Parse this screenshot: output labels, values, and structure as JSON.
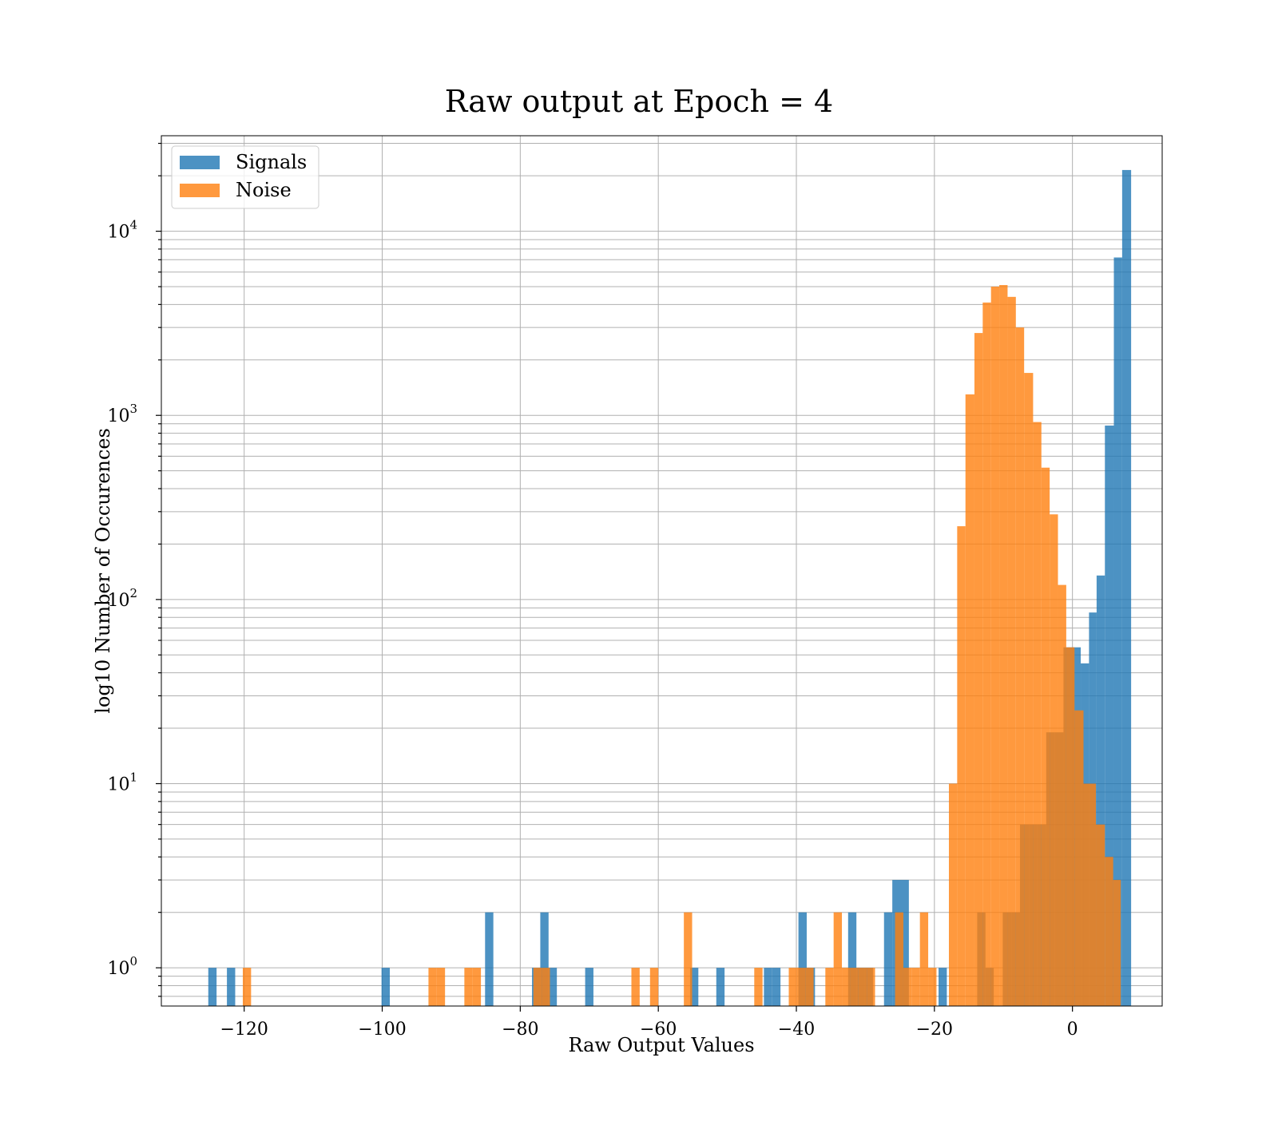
{
  "chart_data": {
    "type": "histogram",
    "title": "Raw output at Epoch = 4",
    "xlabel": "Raw Output Values",
    "ylabel": "log10 Number of Occurences",
    "xlim": [
      -132,
      13
    ],
    "ylim": [
      0.62,
      33000
    ],
    "yscale": "log",
    "grid": true,
    "grid_y_minor": true,
    "legend_position": "top-left",
    "x_ticks": [
      {
        "value": -120,
        "label": "−120"
      },
      {
        "value": -100,
        "label": "−100"
      },
      {
        "value": -80,
        "label": "−80"
      },
      {
        "value": -60,
        "label": "−60"
      },
      {
        "value": -40,
        "label": "−40"
      },
      {
        "value": -20,
        "label": "−20"
      },
      {
        "value": 0,
        "label": "0"
      }
    ],
    "y_ticks": [
      {
        "value": 1,
        "base": "10",
        "exp": "0"
      },
      {
        "value": 10,
        "base": "10",
        "exp": "1"
      },
      {
        "value": 100,
        "base": "10",
        "exp": "2"
      },
      {
        "value": 1000,
        "base": "10",
        "exp": "3"
      },
      {
        "value": 10000,
        "base": "10",
        "exp": "4"
      }
    ],
    "series": [
      {
        "name": "Signals",
        "color": "#1f77b4",
        "opacity": 0.8,
        "bins": [
          {
            "x0": -125.2,
            "x1": -124.0,
            "count": 1
          },
          {
            "x0": -122.5,
            "x1": -121.3,
            "count": 1
          },
          {
            "x0": -100.1,
            "x1": -98.9,
            "count": 1
          },
          {
            "x0": -85.1,
            "x1": -83.9,
            "count": 2
          },
          {
            "x0": -78.3,
            "x1": -77.1,
            "count": 1
          },
          {
            "x0": -77.1,
            "x1": -75.9,
            "count": 2
          },
          {
            "x0": -75.9,
            "x1": -74.7,
            "count": 1
          },
          {
            "x0": -70.6,
            "x1": -69.4,
            "count": 1
          },
          {
            "x0": -55.4,
            "x1": -54.2,
            "count": 1
          },
          {
            "x0": -51.6,
            "x1": -50.4,
            "count": 1
          },
          {
            "x0": -44.7,
            "x1": -43.5,
            "count": 1
          },
          {
            "x0": -43.5,
            "x1": -42.3,
            "count": 1
          },
          {
            "x0": -39.7,
            "x1": -38.5,
            "count": 2
          },
          {
            "x0": -38.5,
            "x1": -37.3,
            "count": 1
          },
          {
            "x0": -32.5,
            "x1": -31.3,
            "count": 2
          },
          {
            "x0": -31.3,
            "x1": -30.1,
            "count": 1
          },
          {
            "x0": -30.1,
            "x1": -28.9,
            "count": 1
          },
          {
            "x0": -27.3,
            "x1": -26.1,
            "count": 2
          },
          {
            "x0": -26.1,
            "x1": -24.9,
            "count": 3
          },
          {
            "x0": -24.9,
            "x1": -23.7,
            "count": 3
          },
          {
            "x0": -19.4,
            "x1": -18.2,
            "count": 1
          },
          {
            "x0": -13.8,
            "x1": -12.6,
            "count": 2
          },
          {
            "x0": -12.6,
            "x1": -11.4,
            "count": 1
          },
          {
            "x0": -10.1,
            "x1": -8.8,
            "count": 2
          },
          {
            "x0": -8.8,
            "x1": -7.6,
            "count": 2
          },
          {
            "x0": -7.6,
            "x1": -6.3,
            "count": 6
          },
          {
            "x0": -6.3,
            "x1": -5.1,
            "count": 6
          },
          {
            "x0": -5.1,
            "x1": -3.8,
            "count": 6
          },
          {
            "x0": -3.8,
            "x1": -2.6,
            "count": 19
          },
          {
            "x0": -2.6,
            "x1": -1.3,
            "count": 19
          },
          {
            "x0": -1.3,
            "x1": 0.0,
            "count": 55
          },
          {
            "x0": 0.0,
            "x1": 1.2,
            "count": 55
          },
          {
            "x0": 1.2,
            "x1": 2.4,
            "count": 45
          },
          {
            "x0": 2.4,
            "x1": 3.5,
            "count": 85
          },
          {
            "x0": 3.5,
            "x1": 4.7,
            "count": 135
          },
          {
            "x0": 4.7,
            "x1": 6.0,
            "count": 880
          },
          {
            "x0": 6.0,
            "x1": 7.2,
            "count": 7200
          },
          {
            "x0": 7.2,
            "x1": 8.5,
            "count": 21500
          }
        ]
      },
      {
        "name": "Noise",
        "color": "#ff7f0e",
        "opacity": 0.8,
        "bins": [
          {
            "x0": -120.2,
            "x1": -119.0,
            "count": 1
          },
          {
            "x0": -93.3,
            "x1": -92.1,
            "count": 1
          },
          {
            "x0": -92.1,
            "x1": -90.9,
            "count": 1
          },
          {
            "x0": -88.1,
            "x1": -86.9,
            "count": 1
          },
          {
            "x0": -86.9,
            "x1": -85.7,
            "count": 1
          },
          {
            "x0": -78.1,
            "x1": -76.9,
            "count": 1
          },
          {
            "x0": -76.9,
            "x1": -75.7,
            "count": 1
          },
          {
            "x0": -63.9,
            "x1": -62.7,
            "count": 1
          },
          {
            "x0": -61.2,
            "x1": -60.0,
            "count": 1
          },
          {
            "x0": -56.3,
            "x1": -55.1,
            "count": 2
          },
          {
            "x0": -46.1,
            "x1": -44.9,
            "count": 1
          },
          {
            "x0": -41.1,
            "x1": -39.9,
            "count": 1
          },
          {
            "x0": -39.9,
            "x1": -38.7,
            "count": 1
          },
          {
            "x0": -38.7,
            "x1": -37.5,
            "count": 1
          },
          {
            "x0": -35.8,
            "x1": -34.6,
            "count": 1
          },
          {
            "x0": -34.6,
            "x1": -33.4,
            "count": 2
          },
          {
            "x0": -33.4,
            "x1": -32.2,
            "count": 1
          },
          {
            "x0": -32.2,
            "x1": -31.0,
            "count": 1
          },
          {
            "x0": -31.0,
            "x1": -29.8,
            "count": 1
          },
          {
            "x0": -29.8,
            "x1": -28.6,
            "count": 1
          },
          {
            "x0": -25.7,
            "x1": -24.5,
            "count": 2
          },
          {
            "x0": -24.5,
            "x1": -23.3,
            "count": 1
          },
          {
            "x0": -23.3,
            "x1": -22.1,
            "count": 1
          },
          {
            "x0": -22.1,
            "x1": -20.9,
            "count": 2
          },
          {
            "x0": -20.9,
            "x1": -19.7,
            "count": 1
          },
          {
            "x0": -17.9,
            "x1": -16.7,
            "count": 10
          },
          {
            "x0": -16.7,
            "x1": -15.5,
            "count": 250
          },
          {
            "x0": -15.5,
            "x1": -14.2,
            "count": 1300
          },
          {
            "x0": -14.2,
            "x1": -13.0,
            "count": 2800
          },
          {
            "x0": -13.0,
            "x1": -11.8,
            "count": 4100
          },
          {
            "x0": -11.8,
            "x1": -10.6,
            "count": 5000
          },
          {
            "x0": -10.6,
            "x1": -9.4,
            "count": 5100
          },
          {
            "x0": -9.4,
            "x1": -8.2,
            "count": 4400
          },
          {
            "x0": -8.2,
            "x1": -7.0,
            "count": 3000
          },
          {
            "x0": -7.0,
            "x1": -5.7,
            "count": 1700
          },
          {
            "x0": -5.7,
            "x1": -4.5,
            "count": 920
          },
          {
            "x0": -4.5,
            "x1": -3.3,
            "count": 520
          },
          {
            "x0": -3.3,
            "x1": -2.1,
            "count": 290
          },
          {
            "x0": -2.1,
            "x1": -0.9,
            "count": 120
          },
          {
            "x0": -0.9,
            "x1": 0.3,
            "count": 55
          },
          {
            "x0": 0.3,
            "x1": 1.6,
            "count": 25
          },
          {
            "x0": 1.6,
            "x1": 3.4,
            "count": 10
          },
          {
            "x0": 3.4,
            "x1": 4.7,
            "count": 6
          },
          {
            "x0": 4.7,
            "x1": 5.9,
            "count": 4
          },
          {
            "x0": 5.9,
            "x1": 7.0,
            "count": 3
          }
        ]
      }
    ]
  }
}
